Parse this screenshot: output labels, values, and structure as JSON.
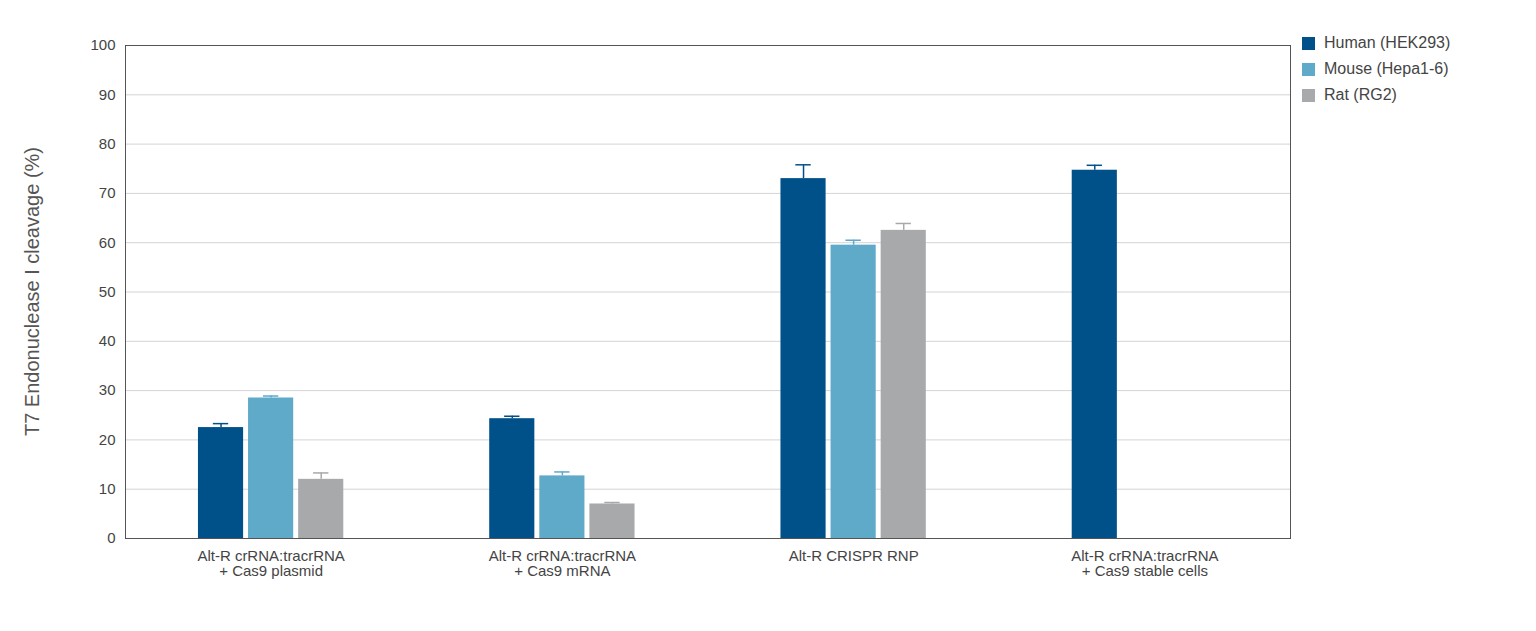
{
  "chart_data": {
    "type": "bar",
    "y_label": "T7 Endonuclease I cleavage (%)",
    "categories": [
      "Alt-R crRNA:tracrRNA\n+ Cas9 plasmid",
      "Alt-R crRNA:tracrRNA\n+ Cas9 mRNA",
      "Alt-R CRISPR RNP",
      "Alt-R crRNA:tracrRNA\n+ Cas9 stable cells"
    ],
    "series": [
      {
        "name": "Human (HEK293)",
        "color": "#00508a",
        "values": [
          22.5,
          24.3,
          73.0,
          74.7
        ],
        "errors": [
          0.8,
          0.5,
          2.8,
          1.0
        ]
      },
      {
        "name": "Mouse (Hepa1-6)",
        "color": "#5fa9c9",
        "values": [
          28.5,
          12.7,
          59.5,
          null
        ],
        "errors": [
          0.4,
          0.8,
          1.0,
          null
        ]
      },
      {
        "name": "Rat (RG2)",
        "color": "#a8a9ab",
        "values": [
          12.0,
          7.0,
          62.5,
          null
        ],
        "errors": [
          1.3,
          0.3,
          1.4,
          null
        ]
      }
    ],
    "ylim": [
      0,
      100
    ],
    "yticks": [
      0,
      10,
      20,
      30,
      40,
      50,
      60,
      70,
      80,
      90,
      100
    ],
    "grid": true,
    "legend": "upper right"
  }
}
